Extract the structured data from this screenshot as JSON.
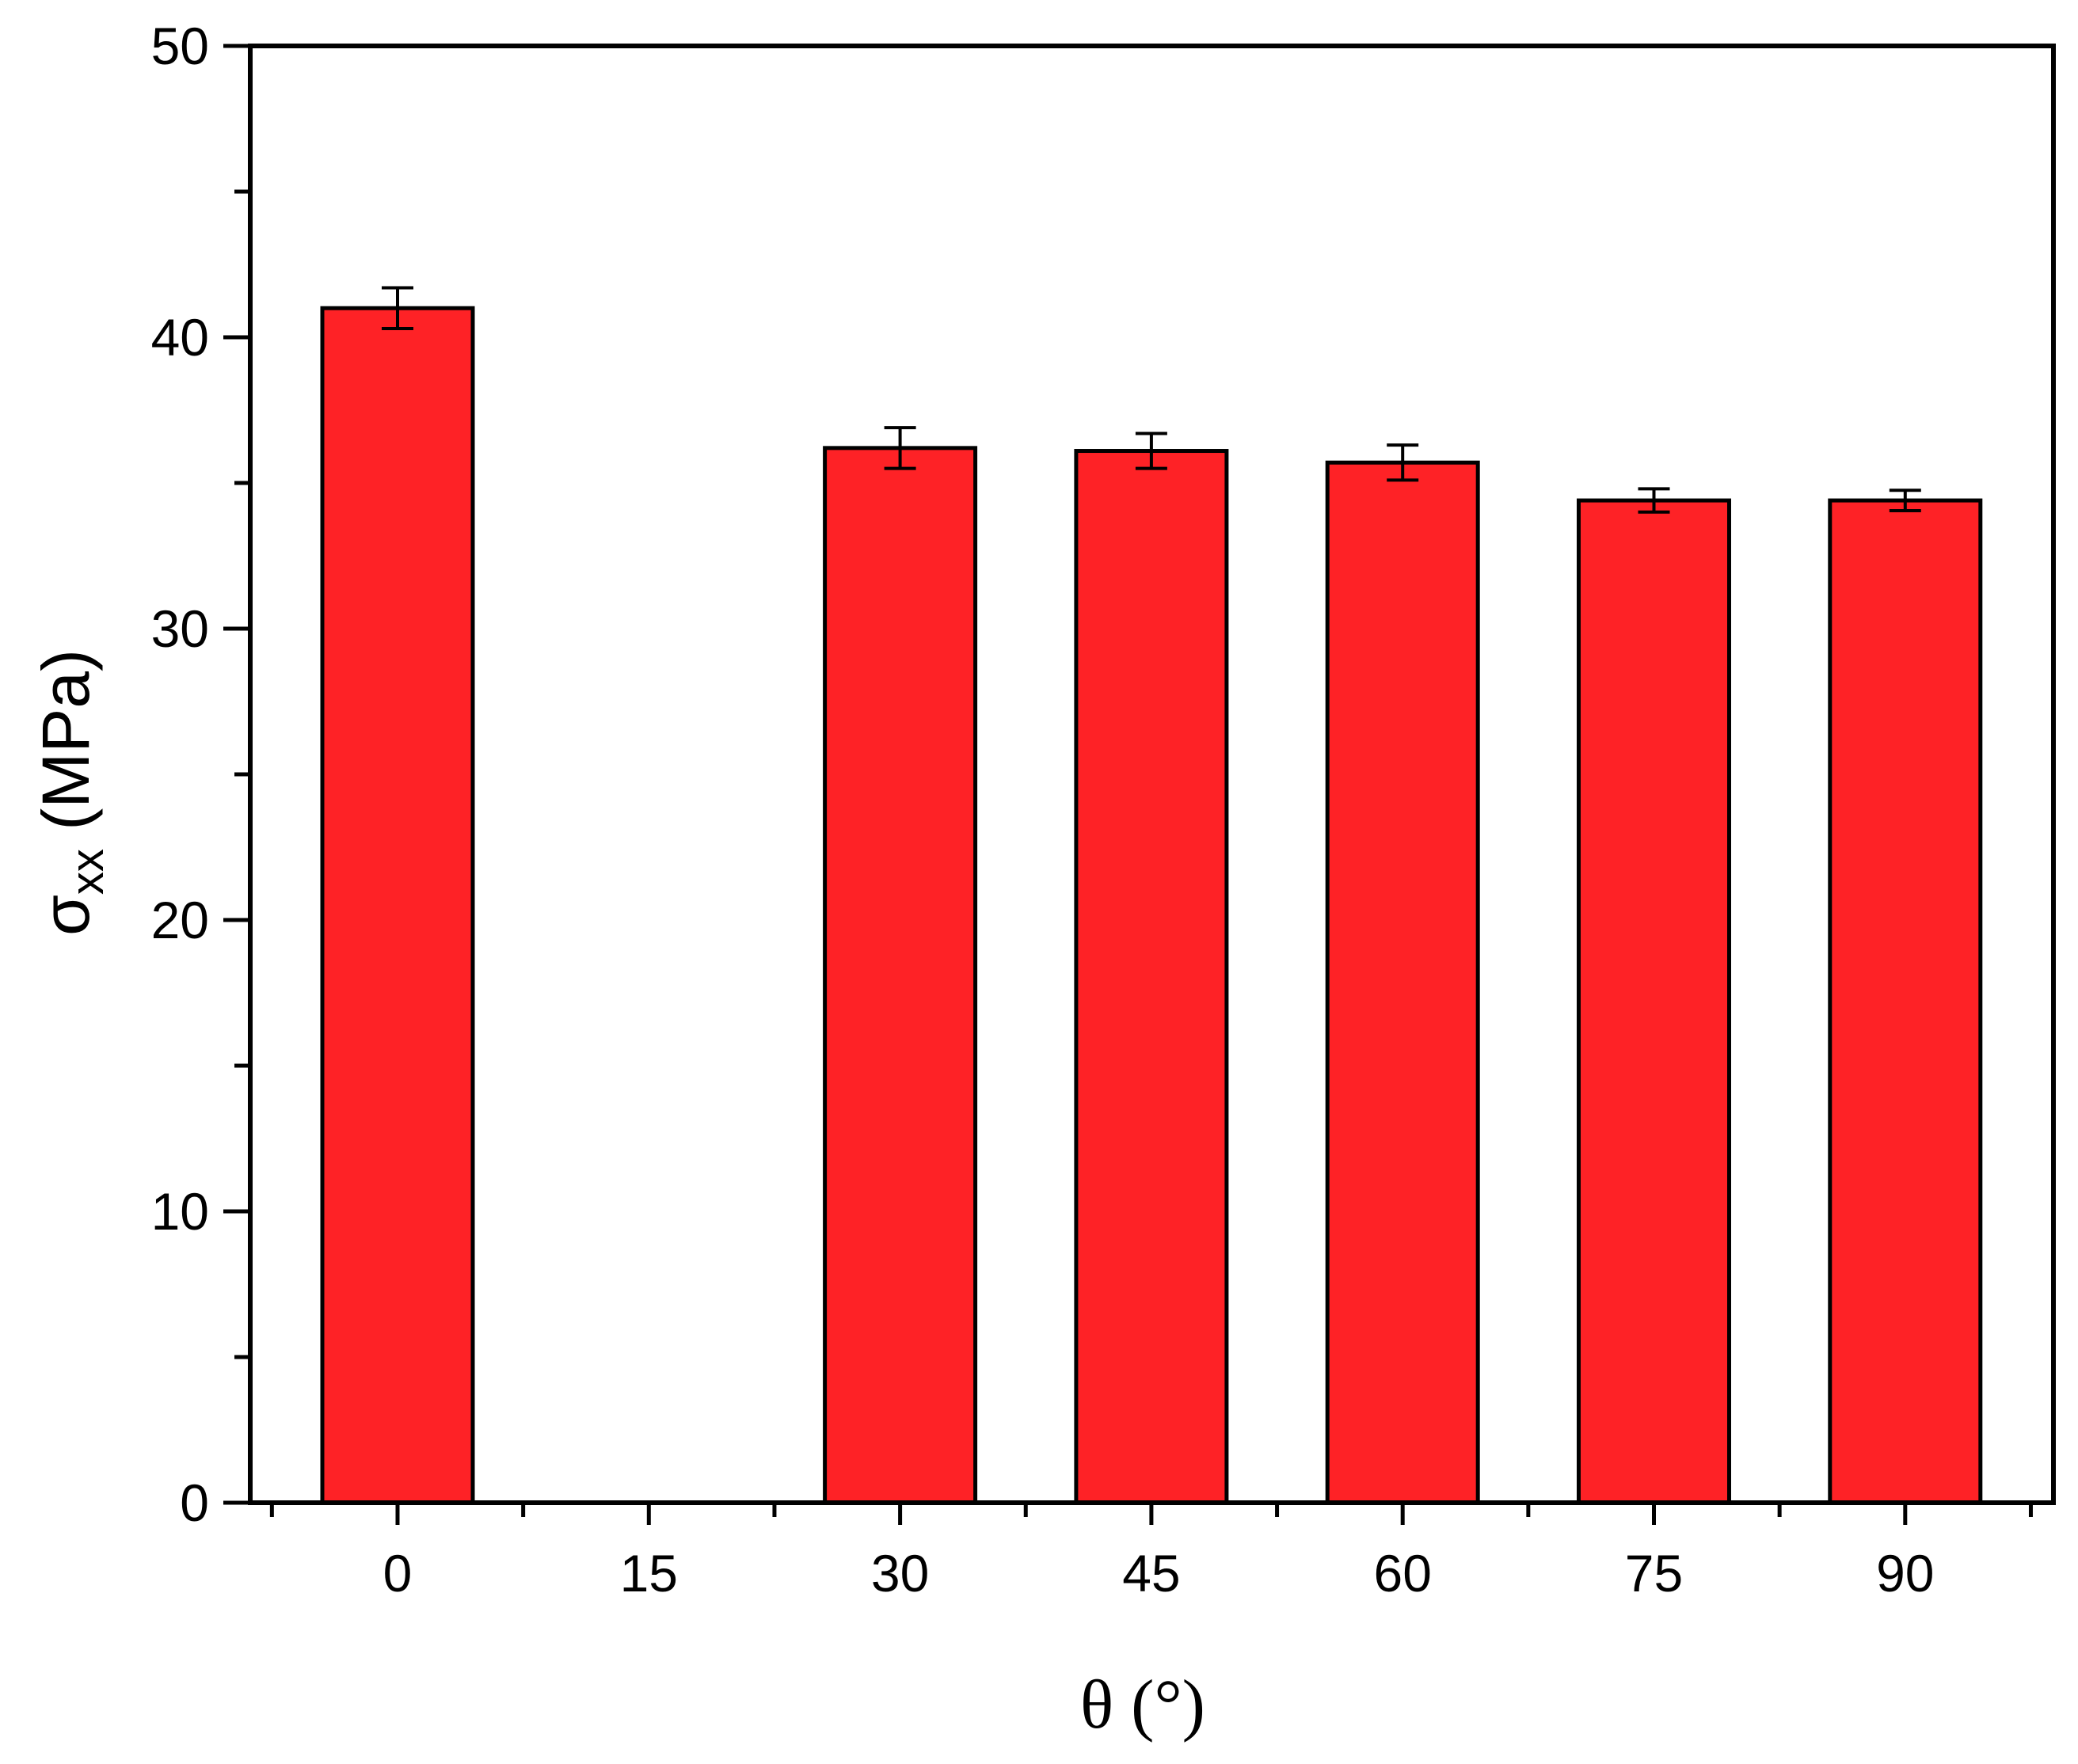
{
  "chart_data": {
    "type": "bar",
    "categories": [
      "0",
      "15",
      "30",
      "45",
      "60",
      "75",
      "90"
    ],
    "series": [
      {
        "values": [
          41.0,
          null,
          36.2,
          36.1,
          35.7,
          34.4,
          34.4
        ],
        "errors": [
          0.7,
          null,
          0.7,
          0.6,
          0.6,
          0.4,
          0.35
        ],
        "color": "#fe2226"
      }
    ],
    "ylim": [
      0,
      50
    ],
    "yticks": [
      "0",
      "10",
      "20",
      "30",
      "40",
      "50"
    ],
    "xlabel": "θ (°)",
    "ylabel_main": "σ",
    "ylabel_sub": "xx",
    "ylabel_unit": " (MPa)",
    "grid": false
  }
}
